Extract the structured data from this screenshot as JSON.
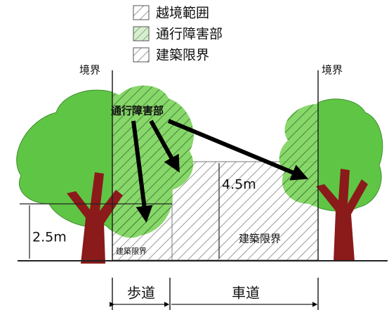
{
  "legend": {
    "items": [
      "越境範囲",
      "通行障害部",
      "建築限界"
    ]
  },
  "boundary_labels": [
    "境界",
    "境界"
  ],
  "annotation": "通行障害部",
  "dimensions": [
    "4.5m",
    "2.5m"
  ],
  "clearance_labels": [
    "建築限界",
    "建築限界"
  ],
  "road_labels": [
    "歩道",
    "車道"
  ]
}
